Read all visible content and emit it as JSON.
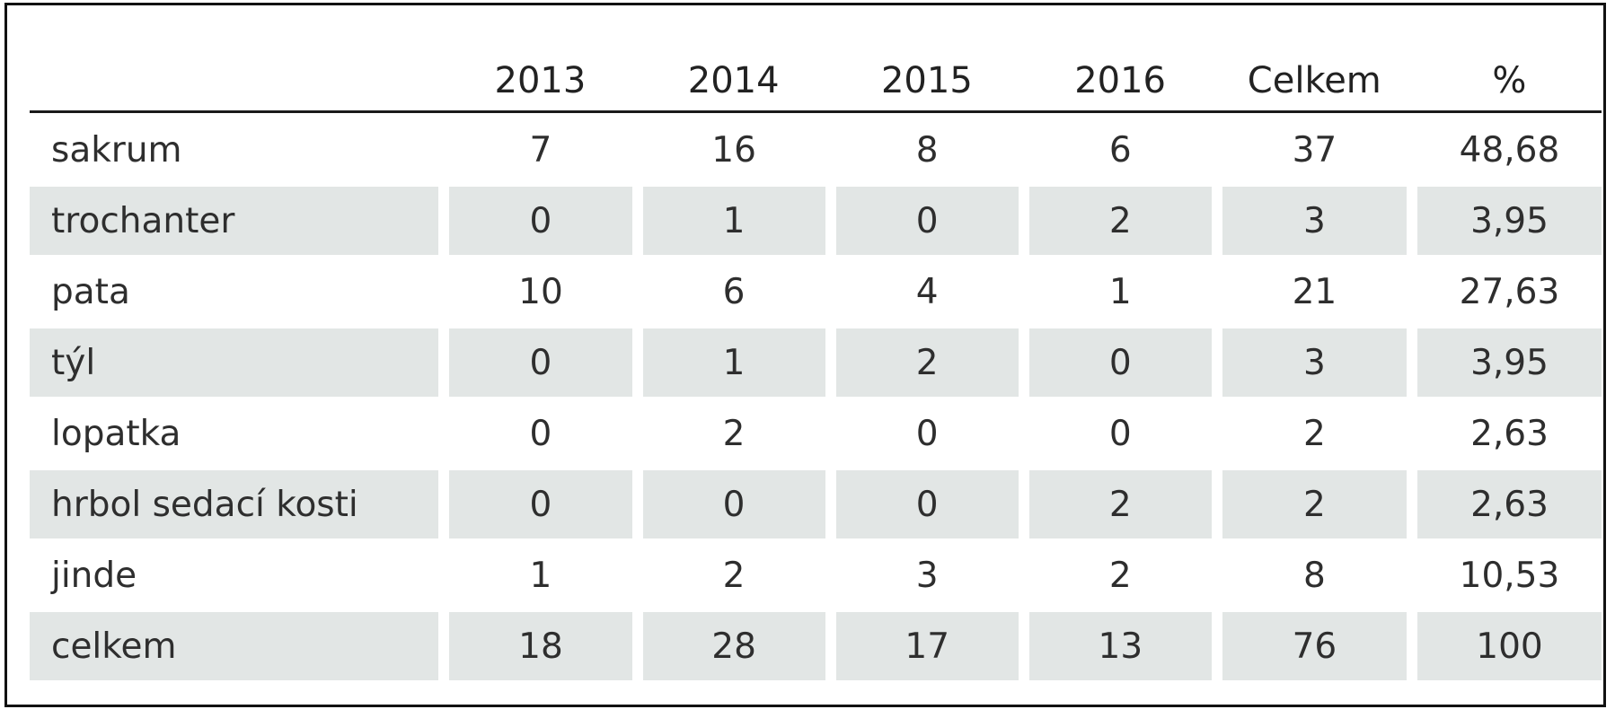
{
  "table": {
    "headers": [
      "",
      "2013",
      "2014",
      "2015",
      "2016",
      "Celkem",
      "%"
    ],
    "rows": [
      {
        "label": "sakrum",
        "values": [
          "7",
          "16",
          "8",
          "6",
          "37",
          "48,68"
        ]
      },
      {
        "label": "trochanter",
        "values": [
          "0",
          "1",
          "0",
          "2",
          "3",
          "3,95"
        ]
      },
      {
        "label": "pata",
        "values": [
          "10",
          "6",
          "4",
          "1",
          "21",
          "27,63"
        ]
      },
      {
        "label": "týl",
        "values": [
          "0",
          "1",
          "2",
          "0",
          "3",
          "3,95"
        ]
      },
      {
        "label": "lopatka",
        "values": [
          "0",
          "2",
          "0",
          "0",
          "2",
          "2,63"
        ]
      },
      {
        "label": "hrbol sedací kosti",
        "values": [
          "0",
          "0",
          "0",
          "2",
          "2",
          "2,63"
        ]
      },
      {
        "label": "jinde",
        "values": [
          "1",
          "2",
          "3",
          "2",
          "8",
          "10,53"
        ]
      },
      {
        "label": "celkem",
        "values": [
          "18",
          "28",
          "17",
          "13",
          "76",
          "100"
        ]
      }
    ]
  },
  "colors": {
    "shaded_row": "#e2e6e5",
    "border": "#111111",
    "text": "#2e2e2e"
  }
}
